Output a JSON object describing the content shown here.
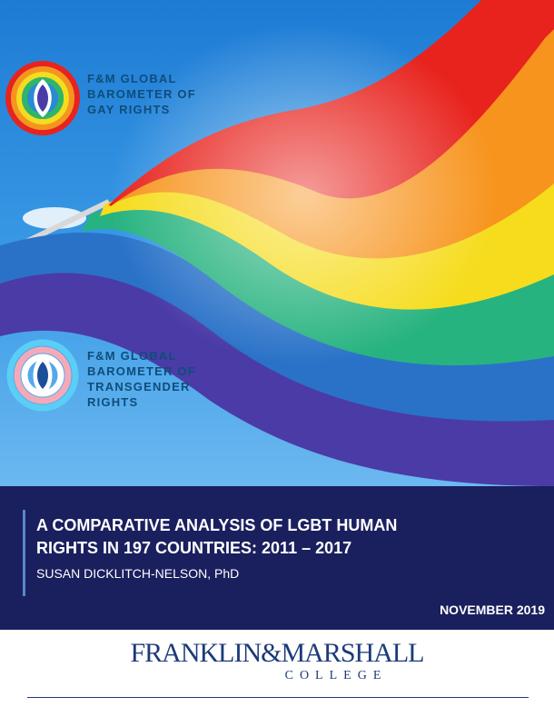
{
  "logos": {
    "gay_rights": {
      "lines": [
        "F&M GLOBAL",
        "BAROMETER OF",
        "GAY RIGHTS"
      ],
      "icon": "rainbow-barometer-icon"
    },
    "transgender_rights": {
      "lines": [
        "F&M GLOBAL",
        "BAROMETER OF",
        "TRANSGENDER",
        "RIGHTS"
      ],
      "icon": "transgender-barometer-icon"
    }
  },
  "report": {
    "title_lines": [
      "A COMPARATIVE ANALYSIS OF LGBT HUMAN",
      "RIGHTS IN 197 COUNTRIES: 2011 – 2017"
    ],
    "author": "SUSAN DICKLITCH-NELSON, PhD",
    "date": "NOVEMBER 2019"
  },
  "college": {
    "name": "FRANKLIN&MARSHALL",
    "sub": "COLLEGE"
  },
  "colors": {
    "band": "#1a1f5e",
    "logo_text": "#0e4d7a",
    "college": "#1c3a7a",
    "flag": [
      "#e8231e",
      "#f7941d",
      "#f6e01c",
      "#2fb56a",
      "#2a8ad4",
      "#4b3ba6"
    ]
  }
}
